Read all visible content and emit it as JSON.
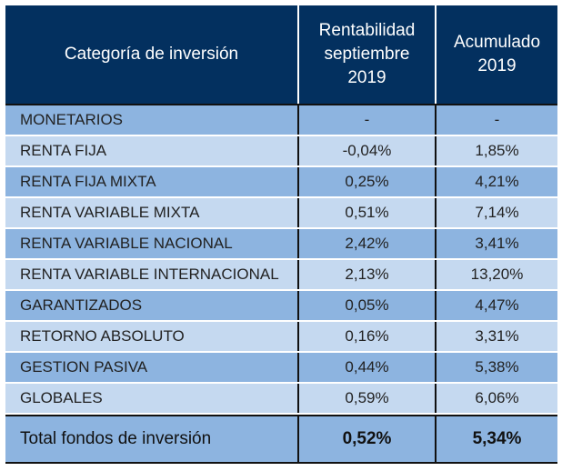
{
  "header": {
    "category": "Categoría de inversión",
    "monthly": [
      "Rentabilidad",
      "septiembre",
      "2019"
    ],
    "ytd": [
      "Acumulado",
      "2019"
    ]
  },
  "rows": [
    {
      "category": "MONETARIOS",
      "monthly": "-",
      "ytd": "-"
    },
    {
      "category": "RENTA FIJA",
      "monthly": "-0,04%",
      "ytd": "1,85%"
    },
    {
      "category": "RENTA FIJA MIXTA",
      "monthly": "0,25%",
      "ytd": "4,21%"
    },
    {
      "category": "RENTA VARIABLE MIXTA",
      "monthly": "0,51%",
      "ytd": "7,14%"
    },
    {
      "category": "RENTA VARIABLE NACIONAL",
      "monthly": "2,42%",
      "ytd": "3,41%"
    },
    {
      "category": "RENTA VARIABLE INTERNACIONAL",
      "monthly": "2,13%",
      "ytd": "13,20%"
    },
    {
      "category": "GARANTIZADOS",
      "monthly": "0,05%",
      "ytd": "4,47%"
    },
    {
      "category": "RETORNO ABSOLUTO",
      "monthly": "0,16%",
      "ytd": "3,31%"
    },
    {
      "category": "GESTION PASIVA",
      "monthly": "0,44%",
      "ytd": "5,38%"
    },
    {
      "category": "GLOBALES",
      "monthly": "0,59%",
      "ytd": "6,06%"
    }
  ],
  "total": {
    "category": "Total fondos de inversión",
    "monthly": "0,52%",
    "ytd": "5,34%"
  },
  "colors": {
    "header": "#03305f",
    "row_dark": "#8db4e0",
    "row_light": "#c5d9f0"
  }
}
